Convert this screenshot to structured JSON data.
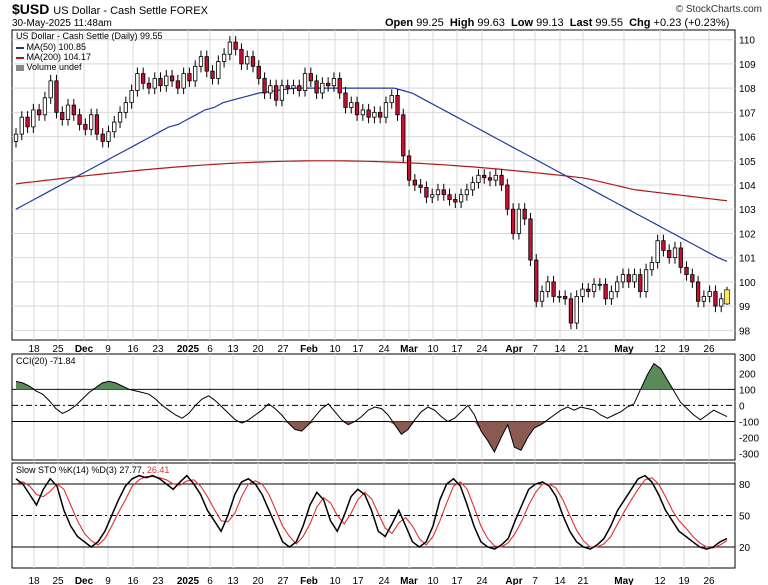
{
  "header": {
    "symbol": "$USD",
    "description": "US Dollar - Cash Settle  FOREX",
    "datetime": "30-May-2025 11:48am",
    "open_label": "Open",
    "open": "99.25",
    "high_label": "High",
    "high": "99.63",
    "low_label": "Low",
    "low": "99.13",
    "last_label": "Last",
    "last": "99.55",
    "chg_label": "Chg",
    "chg": "+0.23 (+0.23%)",
    "watermark": "© StockCharts.com"
  },
  "legend": {
    "price": "US Dollar - Cash Settle (Daily) 99.55",
    "ma50": "MA(50) 100.85",
    "ma200": "MA(200) 104.17",
    "volume": "Volume undef",
    "cci": "CCI(20) -71.84",
    "sto": "Slow STO %K(14) %D(3) 27.77,",
    "sto_d": "26.41"
  },
  "colors": {
    "up": "#ffffff",
    "down": "#c8102e",
    "wick": "#000000",
    "ma50": "#1f3b9b",
    "ma200": "#b01a1a",
    "cci_fill_pos": "#5a8a5a",
    "cci_fill_neg": "#8a5a52",
    "k_line": "#000000",
    "d_line": "#e03030"
  },
  "x_axis": {
    "labels": [
      "18",
      "25",
      "Dec",
      "9",
      "16",
      "23",
      "2025",
      "6",
      "13",
      "20",
      "27",
      "Feb",
      "10",
      "17",
      "24",
      "Mar",
      "10",
      "17",
      "24",
      "Apr",
      "7",
      "14",
      "21",
      "May",
      "12",
      "19",
      "26"
    ]
  },
  "chart_data": [
    {
      "type": "candlestick",
      "title": "US Dollar - Cash Settle (Daily) 99.55",
      "ylim": [
        97.6,
        110.4
      ],
      "y_ticks": [
        98,
        99,
        100,
        101,
        102,
        103,
        104,
        105,
        106,
        107,
        108,
        109,
        110
      ],
      "close": [
        106.1,
        106.8,
        106.4,
        107.1,
        106.9,
        107.6,
        108.3,
        107.0,
        106.7,
        107.3,
        106.9,
        106.5,
        106.3,
        106.9,
        106.1,
        105.8,
        106.2,
        106.6,
        107.0,
        107.4,
        107.9,
        108.6,
        108.2,
        108.0,
        108.4,
        108.1,
        108.5,
        108.3,
        108.0,
        108.6,
        108.3,
        108.9,
        109.3,
        108.7,
        108.4,
        109.1,
        109.4,
        109.9,
        109.6,
        109.0,
        109.3,
        108.9,
        108.4,
        107.8,
        108.1,
        107.5,
        108.1,
        108.0,
        108.1,
        107.9,
        108.6,
        108.3,
        107.8,
        108.2,
        108.1,
        108.4,
        107.8,
        107.2,
        107.4,
        106.9,
        107.1,
        106.8,
        107.0,
        106.8,
        107.4,
        107.7,
        106.9,
        105.2,
        104.2,
        104.0,
        103.9,
        103.5,
        103.6,
        103.8,
        103.6,
        103.4,
        103.3,
        103.6,
        103.8,
        104.1,
        104.4,
        104.3,
        104.2,
        104.4,
        104.0,
        103.0,
        102.0,
        103.0,
        102.6,
        100.9,
        99.2,
        99.6,
        100.0,
        99.4,
        99.4,
        99.3,
        98.3,
        99.4,
        99.7,
        99.6,
        99.9,
        99.9,
        99.3,
        99.6,
        100.0,
        100.3,
        100.0,
        100.3,
        99.6,
        100.5,
        100.8,
        101.7,
        101.3,
        101.0,
        101.4,
        100.6,
        100.3,
        100.0,
        99.2,
        99.4,
        99.6,
        99.0,
        99.3,
        99.55
      ],
      "ma50": [
        103.0,
        103.2,
        103.4,
        103.6,
        103.8,
        104.0,
        104.2,
        104.4,
        104.6,
        104.8,
        105.0,
        105.2,
        105.4,
        105.6,
        105.8,
        106.0,
        106.2,
        106.4,
        106.5,
        106.7,
        106.9,
        107.1,
        107.2,
        107.4,
        107.5,
        107.6,
        107.7,
        107.8,
        107.85,
        107.9,
        107.95,
        108.0,
        108.0,
        108.0,
        108.0,
        108.0,
        108.0,
        108.0,
        108.0,
        108.0,
        108.0,
        108.0,
        108.0,
        107.9,
        107.8,
        107.6,
        107.4,
        107.2,
        107.0,
        106.8,
        106.6,
        106.4,
        106.2,
        106.0,
        105.8,
        105.6,
        105.4,
        105.2,
        105.0,
        104.8,
        104.6,
        104.4,
        104.2,
        104.0,
        103.8,
        103.6,
        103.4,
        103.2,
        103.0,
        102.8,
        102.6,
        102.4,
        102.2,
        102.0,
        101.8,
        101.6,
        101.4,
        101.2,
        101.0,
        100.85
      ]
    },
    {
      "type": "line",
      "title": "CCI(20) -71.84",
      "ylim": [
        -340,
        320
      ],
      "y_ticks": [
        300,
        200,
        100,
        0,
        -100,
        -200,
        -300
      ],
      "values": [
        150,
        140,
        120,
        90,
        70,
        30,
        -20,
        -50,
        -30,
        0,
        40,
        80,
        110,
        140,
        150,
        140,
        120,
        100,
        90,
        80,
        70,
        40,
        0,
        -30,
        -60,
        -80,
        -50,
        0,
        40,
        60,
        30,
        -10,
        -50,
        -90,
        -110,
        -90,
        -60,
        -30,
        10,
        -20,
        -60,
        -110,
        -150,
        -160,
        -120,
        -70,
        -20,
        10,
        -40,
        -90,
        -120,
        -100,
        -70,
        -30,
        -10,
        -20,
        -60,
        -120,
        -180,
        -150,
        -90,
        -40,
        -10,
        -30,
        -70,
        -100,
        -80,
        -40,
        0,
        -60,
        -160,
        -220,
        -290,
        -200,
        -120,
        -260,
        -280,
        -200,
        -140,
        -120,
        -90,
        -60,
        -30,
        -10,
        -30,
        -10,
        -20,
        -30,
        -60,
        -80,
        -60,
        -40,
        -10,
        10,
        100,
        190,
        260,
        230,
        160,
        90,
        20,
        -20,
        -60,
        -90,
        -60,
        -30,
        -50,
        -70
      ],
      "lines": [
        100,
        0,
        -100
      ]
    },
    {
      "type": "line",
      "title": "Slow STO %K(14) %D(3)",
      "ylim": [
        0,
        100
      ],
      "y_ticks": [
        80,
        50,
        20
      ],
      "k": [
        85,
        80,
        70,
        60,
        75,
        85,
        78,
        55,
        40,
        30,
        25,
        20,
        25,
        35,
        50,
        65,
        78,
        85,
        88,
        86,
        88,
        85,
        80,
        75,
        82,
        88,
        80,
        70,
        55,
        45,
        35,
        50,
        70,
        82,
        85,
        80,
        70,
        55,
        40,
        25,
        20,
        25,
        40,
        60,
        72,
        65,
        45,
        35,
        50,
        68,
        75,
        70,
        55,
        35,
        30,
        42,
        55,
        40,
        25,
        20,
        25,
        40,
        65,
        80,
        85,
        78,
        60,
        40,
        25,
        20,
        18,
        22,
        28,
        45,
        60,
        75,
        80,
        82,
        78,
        68,
        50,
        35,
        25,
        20,
        18,
        22,
        28,
        40,
        55,
        65,
        75,
        85,
        88,
        82,
        70,
        55,
        45,
        35,
        30,
        25,
        20,
        18,
        20,
        25,
        28
      ],
      "d": [
        80,
        82,
        78,
        70,
        68,
        73,
        80,
        75,
        60,
        45,
        33,
        26,
        22,
        28,
        40,
        53,
        65,
        78,
        84,
        87,
        87,
        86,
        84,
        80,
        79,
        83,
        84,
        78,
        68,
        56,
        45,
        44,
        52,
        68,
        80,
        83,
        80,
        70,
        55,
        40,
        30,
        23,
        30,
        42,
        58,
        67,
        62,
        50,
        42,
        52,
        65,
        72,
        66,
        52,
        38,
        33,
        43,
        48,
        40,
        28,
        22,
        30,
        45,
        62,
        78,
        82,
        75,
        58,
        40,
        28,
        21,
        20,
        24,
        33,
        45,
        60,
        72,
        80,
        80,
        76,
        65,
        50,
        36,
        26,
        20,
        20,
        23,
        30,
        42,
        54,
        65,
        75,
        84,
        86,
        80,
        68,
        55,
        45,
        38,
        30,
        24,
        20,
        19,
        22,
        26
      ],
      "lines": [
        80,
        50,
        20
      ]
    }
  ]
}
